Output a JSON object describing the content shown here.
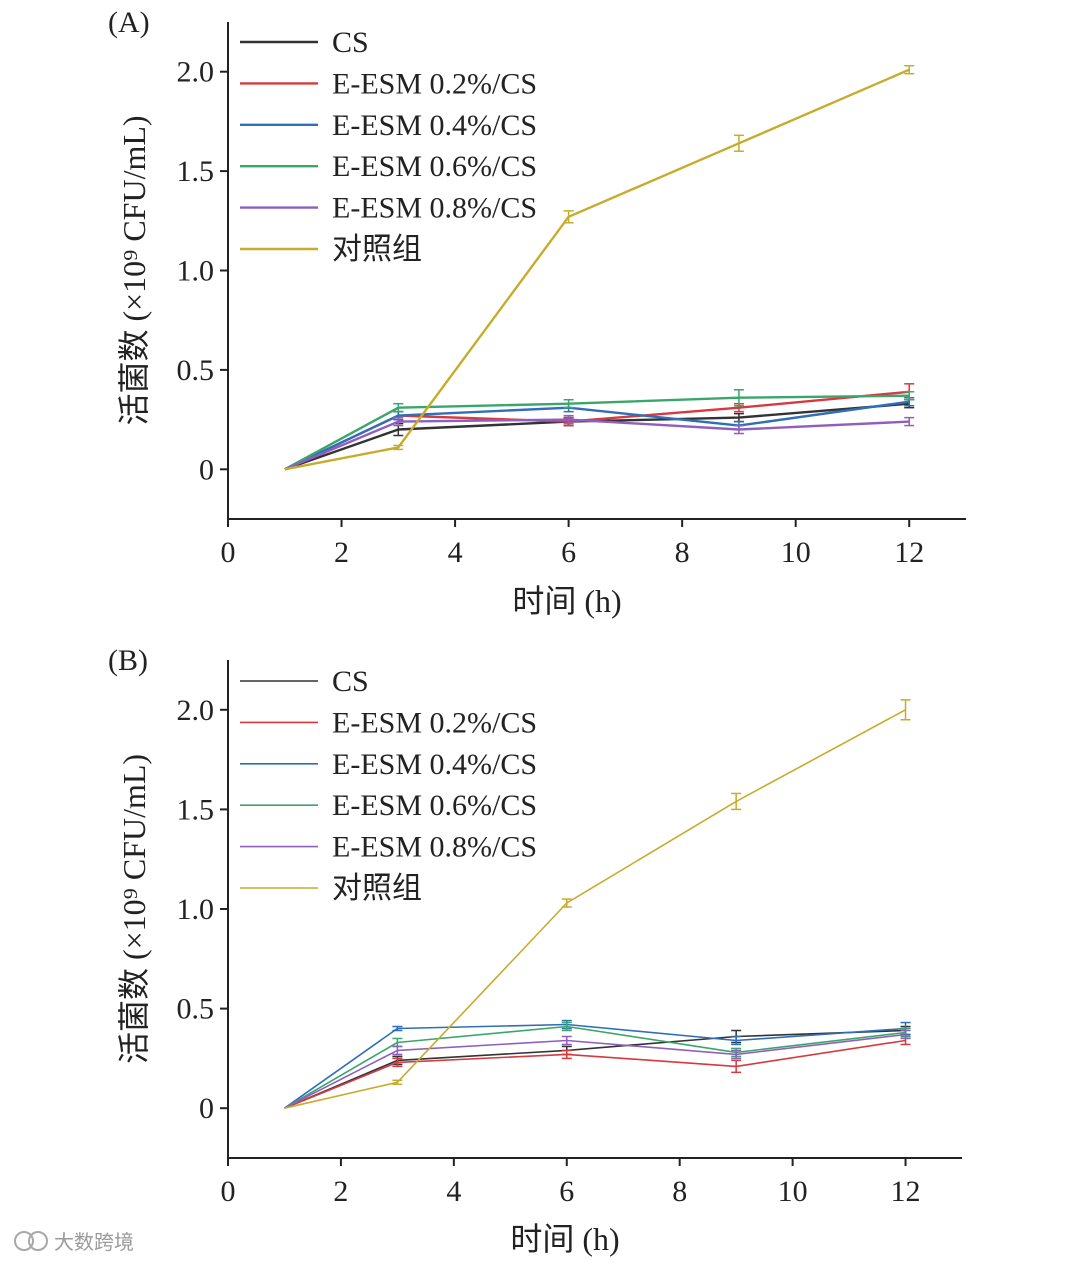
{
  "chart_data": [
    {
      "type": "line",
      "panel_label": "(A)",
      "xlabel": "时间 (h)",
      "ylabel": "活菌数 (×10⁹ CFU/mL)",
      "xlim": [
        0,
        13
      ],
      "ylim": [
        -0.25,
        2.25
      ],
      "xticks": [
        0,
        2,
        4,
        6,
        8,
        10,
        12
      ],
      "yticks": [
        0,
        0.5,
        1.0,
        1.5,
        2.0
      ],
      "ytick_labels": [
        "0",
        "0.5",
        "1.0",
        "1.5",
        "2.0"
      ],
      "legend_position": "top-left",
      "x": [
        1,
        3,
        6,
        9,
        12
      ],
      "series": [
        {
          "name": "CS",
          "color": "#333333",
          "values": [
            0,
            0.2,
            0.24,
            0.26,
            0.33
          ],
          "errors": [
            0,
            0.03,
            0.02,
            0.02,
            0.02
          ]
        },
        {
          "name": "E-ESM 0.2%/CS",
          "color": "#d63a3f",
          "values": [
            0,
            0.27,
            0.24,
            0.31,
            0.39
          ],
          "errors": [
            0,
            0.02,
            0.02,
            0.02,
            0.04
          ]
        },
        {
          "name": "E-ESM 0.4%/CS",
          "color": "#2f6fb8",
          "values": [
            0,
            0.27,
            0.31,
            0.22,
            0.34
          ],
          "errors": [
            0,
            0.02,
            0.02,
            0.02,
            0.02
          ]
        },
        {
          "name": "E-ESM 0.6%/CS",
          "color": "#3aa66b",
          "values": [
            0,
            0.31,
            0.33,
            0.36,
            0.37
          ],
          "errors": [
            0,
            0.02,
            0.02,
            0.04,
            0.02
          ]
        },
        {
          "name": "E-ESM 0.8%/CS",
          "color": "#8f5fc0",
          "values": [
            0,
            0.24,
            0.25,
            0.2,
            0.24
          ],
          "errors": [
            0,
            0.02,
            0.02,
            0.02,
            0.02
          ]
        },
        {
          "name": "对照组",
          "color": "#c7ac2c",
          "values": [
            0,
            0.11,
            1.27,
            1.64,
            2.01
          ],
          "errors": [
            0,
            0.01,
            0.03,
            0.04,
            0.02
          ]
        }
      ]
    },
    {
      "type": "line",
      "panel_label": "(B)",
      "xlabel": "时间 (h)",
      "ylabel": "活菌数 (×10⁹ CFU/mL)",
      "xlim": [
        0,
        13
      ],
      "ylim": [
        -0.25,
        2.25
      ],
      "xticks": [
        0,
        2,
        4,
        6,
        8,
        10,
        12
      ],
      "yticks": [
        0,
        0.5,
        1.0,
        1.5,
        2.0
      ],
      "ytick_labels": [
        "0",
        "0.5",
        "1.0",
        "1.5",
        "2.0"
      ],
      "legend_position": "top-left",
      "x": [
        1,
        3,
        6,
        9,
        12
      ],
      "series": [
        {
          "name": "CS",
          "color": "#333333",
          "values": [
            0,
            0.24,
            0.29,
            0.36,
            0.39
          ],
          "errors": [
            0,
            0.02,
            0.02,
            0.03,
            0.02
          ]
        },
        {
          "name": "E-ESM 0.2%/CS",
          "color": "#d63a3f",
          "values": [
            0,
            0.23,
            0.27,
            0.21,
            0.34
          ],
          "errors": [
            0,
            0.02,
            0.02,
            0.03,
            0.02
          ]
        },
        {
          "name": "E-ESM 0.4%/CS",
          "color": "#2f6fb8",
          "values": [
            0,
            0.4,
            0.42,
            0.34,
            0.4
          ],
          "errors": [
            0,
            0.01,
            0.02,
            0.02,
            0.03
          ]
        },
        {
          "name": "E-ESM 0.6%/CS",
          "color": "#3aa66b",
          "values": [
            0,
            0.33,
            0.41,
            0.28,
            0.38
          ],
          "errors": [
            0,
            0.02,
            0.02,
            0.02,
            0.02
          ]
        },
        {
          "name": "E-ESM 0.8%/CS",
          "color": "#8f5fc0",
          "values": [
            0,
            0.29,
            0.34,
            0.27,
            0.37
          ],
          "errors": [
            0,
            0.02,
            0.02,
            0.02,
            0.02
          ]
        },
        {
          "name": "对照组",
          "color": "#c7ac2c",
          "values": [
            0,
            0.13,
            1.03,
            1.54,
            2.0
          ],
          "errors": [
            0,
            0.01,
            0.02,
            0.04,
            0.05
          ]
        }
      ]
    }
  ],
  "watermark": {
    "text": "大数跨境"
  }
}
